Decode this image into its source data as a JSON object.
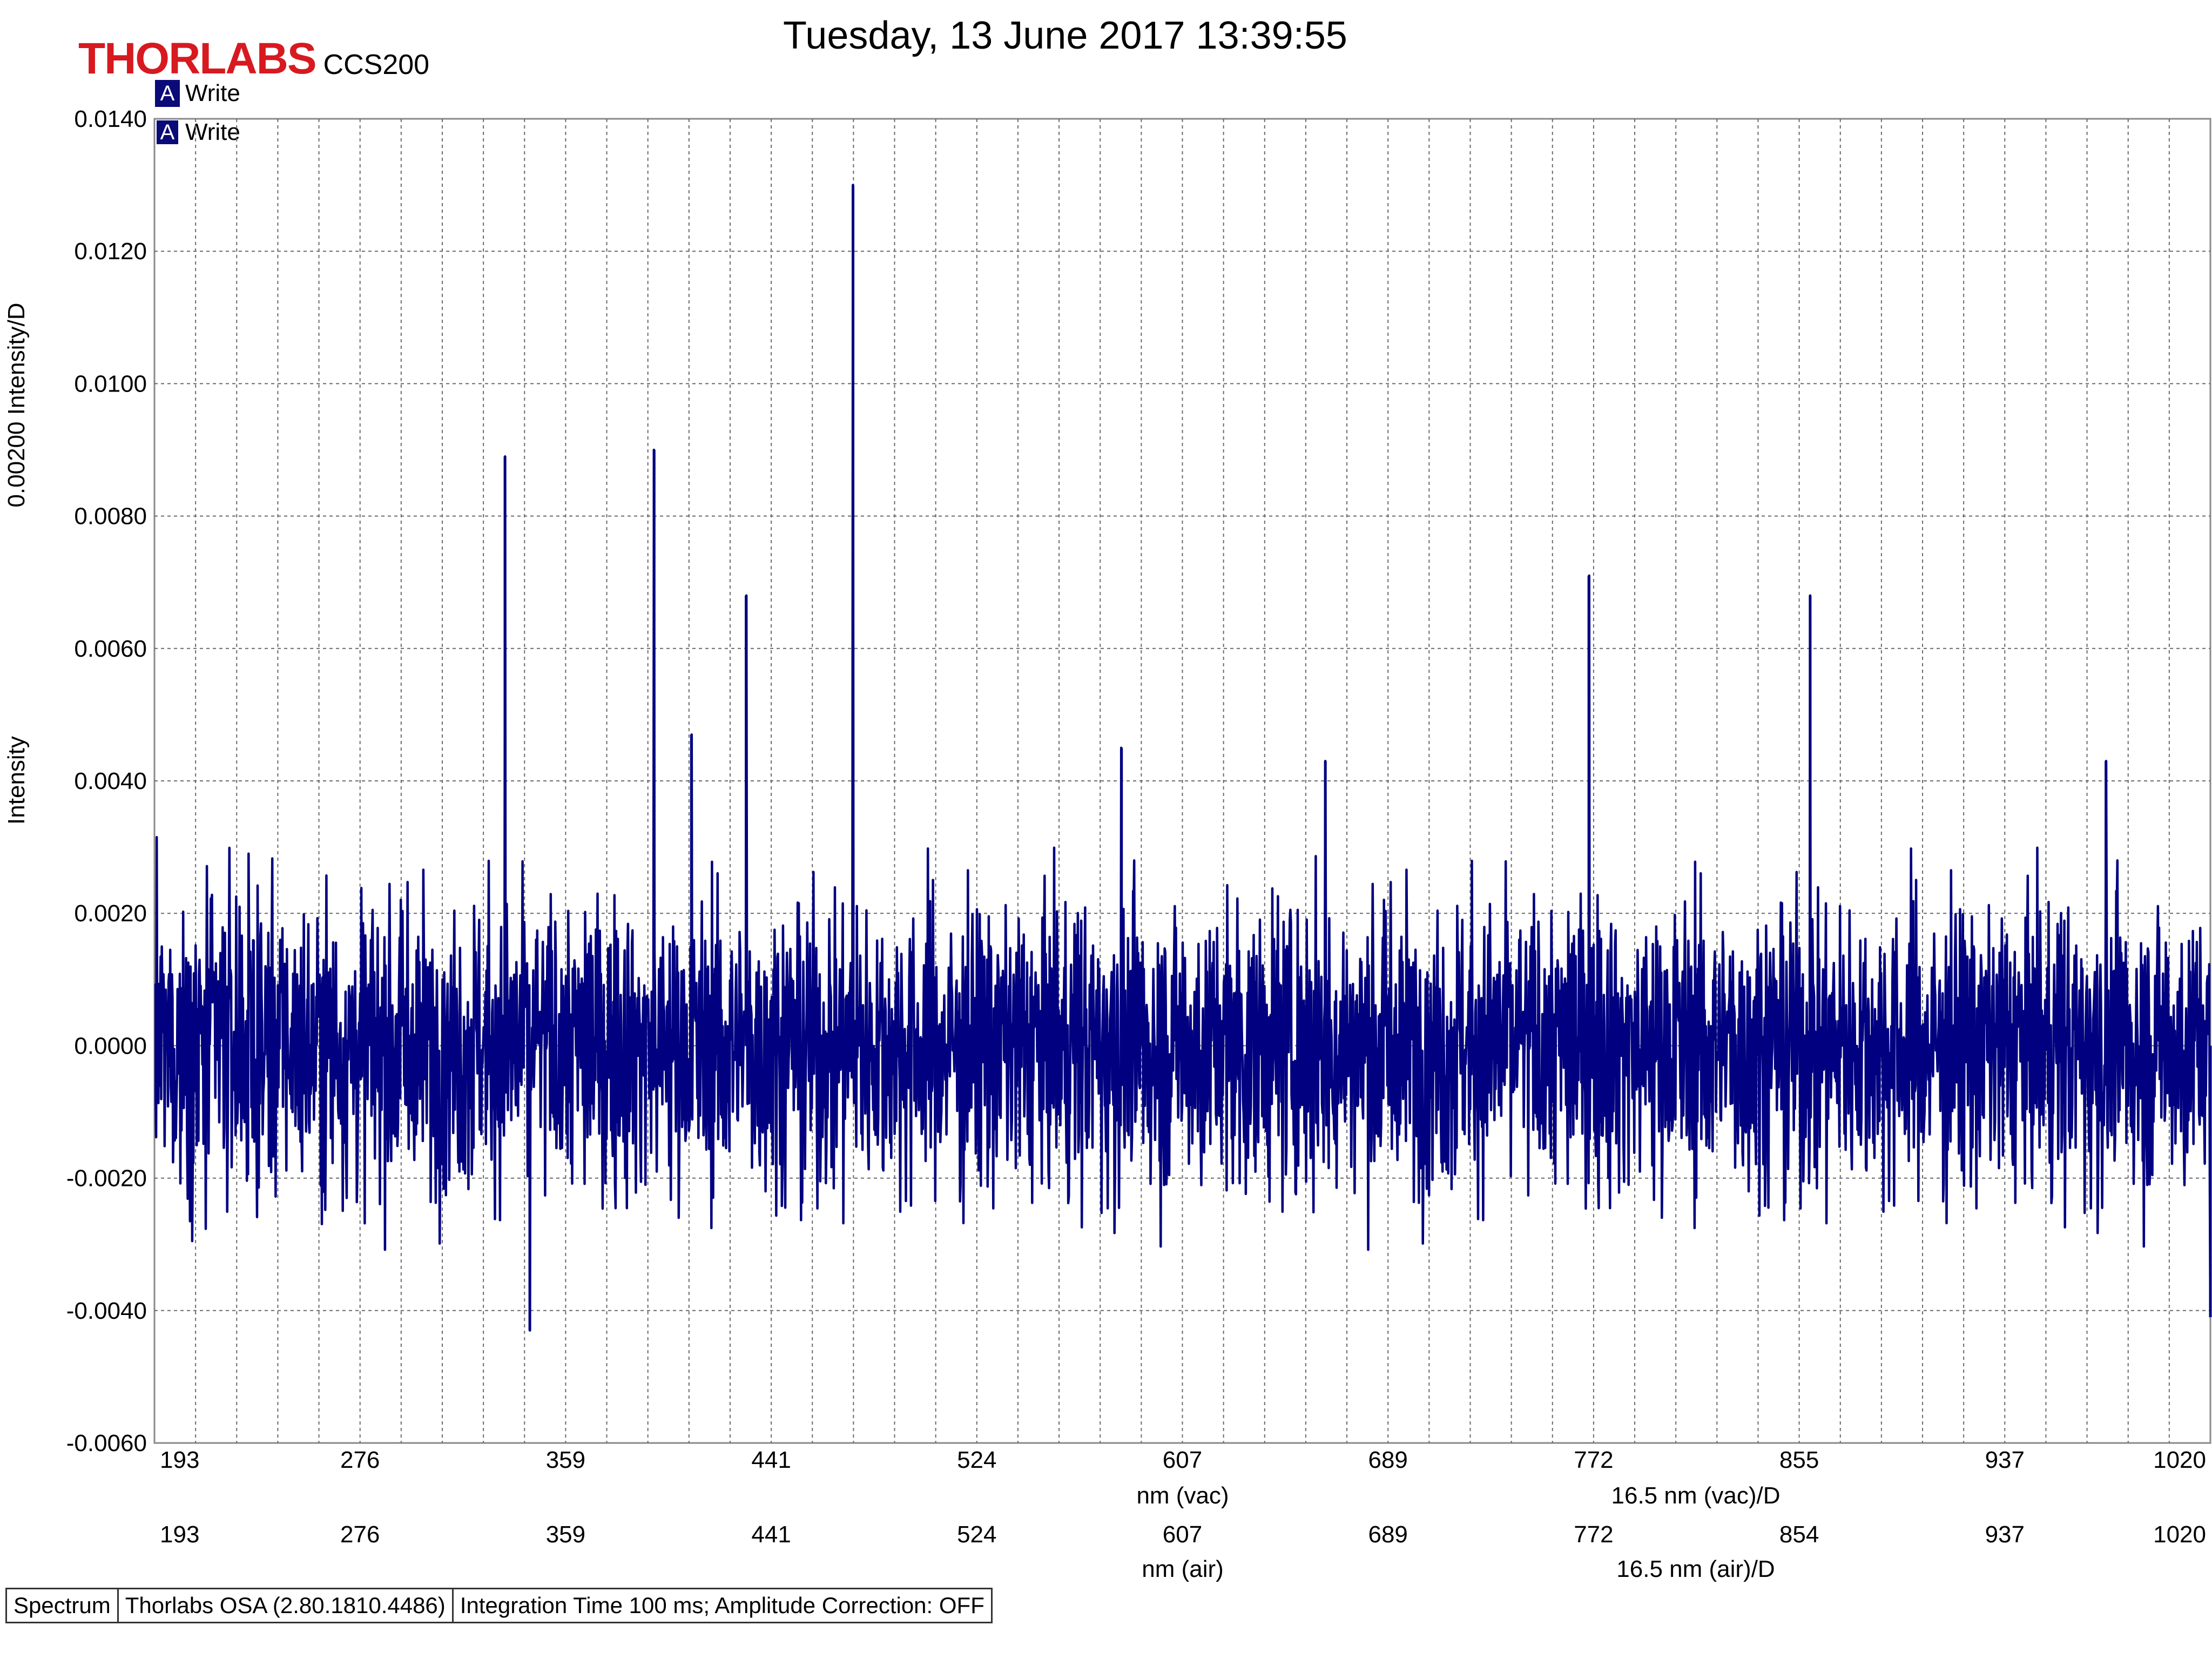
{
  "brand": {
    "logo": "THORLABS",
    "model": "CCS200"
  },
  "title": "Tuesday, 13 June 2017 13:39:55",
  "legend": [
    {
      "icon": "A",
      "label": "Write"
    },
    {
      "icon": "A",
      "label": "Write"
    }
  ],
  "colors": {
    "series": "#000080",
    "logo": "#d71920",
    "grid": "#666666"
  },
  "status_bar": [
    "Spectrum",
    "Thorlabs OSA (2.80.1810.4486)",
    "Integration Time 100 ms; Amplitude Correction: OFF"
  ],
  "chart_data": {
    "type": "line",
    "ylabel": "Intensity",
    "ydiv_label": "0.00200 Intensity/D",
    "yticks": [
      "0.0140",
      "0.0120",
      "0.0100",
      "0.0080",
      "0.0060",
      "0.0040",
      "0.0020",
      "0.0000",
      "-0.0020",
      "-0.0040",
      "-0.0060"
    ],
    "ylim": [
      -0.006,
      0.014
    ],
    "xlim": [
      193,
      1020
    ],
    "grid": true,
    "legend_position": "top-left",
    "x_axis_vac": {
      "ticks": [
        "193",
        "276",
        "359",
        "441",
        "524",
        "607",
        "689",
        "772",
        "855",
        "937",
        "1020"
      ],
      "unit_label": "nm (vac)",
      "div_label": "16.5 nm (vac)/D"
    },
    "x_axis_air": {
      "ticks": [
        "193",
        "276",
        "359",
        "441",
        "524",
        "607",
        "689",
        "772",
        "854",
        "937",
        "1020"
      ],
      "unit_label": "nm (air)",
      "div_label": "16.5 nm (air)/D"
    },
    "series": [
      {
        "color": "#000080",
        "noise_sigma": 0.0011,
        "peaks": [
          {
            "x": 334,
            "y": 0.0089
          },
          {
            "x": 344,
            "y": -0.0043
          },
          {
            "x": 394,
            "y": 0.009
          },
          {
            "x": 409,
            "y": 0.0047
          },
          {
            "x": 431,
            "y": 0.0068
          },
          {
            "x": 474,
            "y": 0.013
          },
          {
            "x": 582,
            "y": 0.0045
          },
          {
            "x": 664,
            "y": 0.0043
          },
          {
            "x": 770,
            "y": 0.0071
          },
          {
            "x": 859,
            "y": 0.0068
          },
          {
            "x": 978,
            "y": 0.0043
          },
          {
            "x": 1020,
            "y": -0.0041
          }
        ]
      }
    ]
  }
}
